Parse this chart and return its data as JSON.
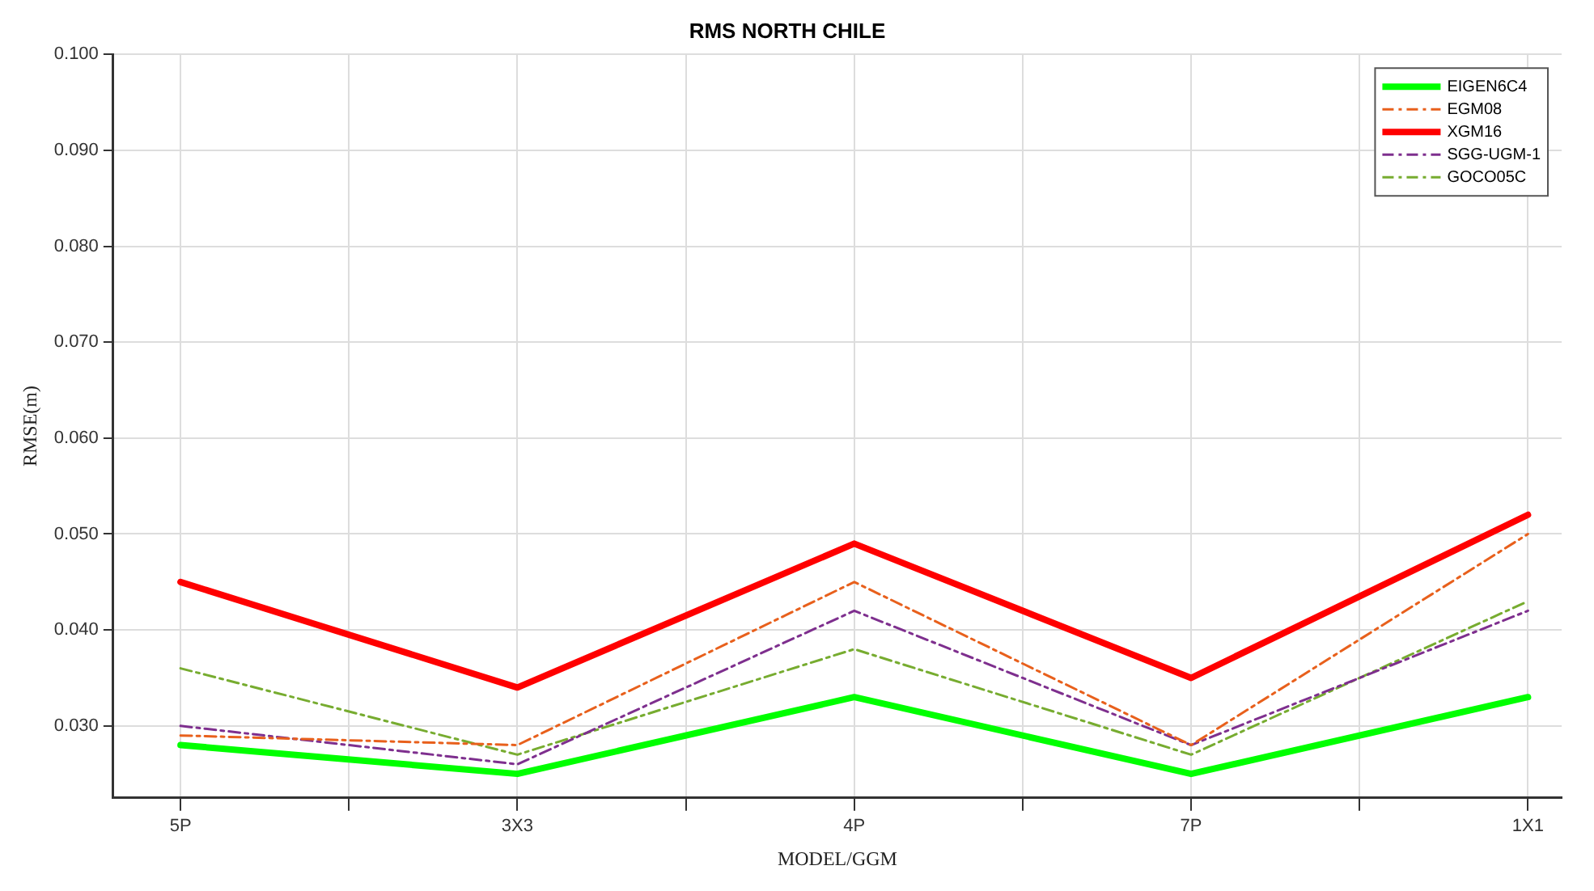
{
  "chart_data": {
    "type": "line",
    "title": "RMS NORTH CHILE",
    "xlabel": "MODEL/GGM",
    "ylabel": "RMSE(m)",
    "categories": [
      "5P",
      "3X3",
      "4P",
      "7P",
      "1X1"
    ],
    "series": [
      {
        "name": "EIGEN6C4",
        "color": "#00ff00",
        "line_style": "solid",
        "values": [
          0.028,
          0.025,
          0.033,
          0.025,
          0.033
        ]
      },
      {
        "name": "EGM08",
        "color": "#e8601c",
        "line_style": "dashed",
        "values": [
          0.029,
          0.028,
          0.045,
          0.028,
          0.05
        ]
      },
      {
        "name": "XGM16",
        "color": "#ff0000",
        "line_style": "solid",
        "values": [
          0.045,
          0.034,
          0.049,
          0.035,
          0.052
        ]
      },
      {
        "name": "SGG-UGM-1",
        "color": "#7e2f8e",
        "line_style": "dashed",
        "values": [
          0.03,
          0.026,
          0.042,
          0.028,
          0.042
        ]
      },
      {
        "name": "GOCO05C",
        "color": "#77ac30",
        "line_style": "dashed",
        "values": [
          0.036,
          0.027,
          0.038,
          0.027,
          0.043
        ]
      }
    ],
    "ylim": [
      0.0225,
      0.1
    ],
    "yticks": [
      {
        "value": 0.03,
        "label": "0.030"
      },
      {
        "value": 0.04,
        "label": "0.040"
      },
      {
        "value": 0.05,
        "label": "0.050"
      },
      {
        "value": 0.06,
        "label": "0.060"
      },
      {
        "value": 0.07,
        "label": "0.070"
      },
      {
        "value": 0.08,
        "label": "0.080"
      },
      {
        "value": 0.09,
        "label": "0.090"
      },
      {
        "value": 0.1,
        "label": "0.100"
      }
    ],
    "grid": true,
    "legend": "top right",
    "marker": "none"
  }
}
